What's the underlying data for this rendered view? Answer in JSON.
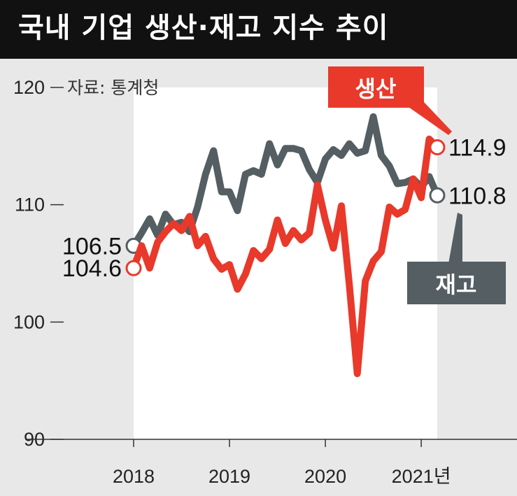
{
  "title": "국내 기업 생산·재고 지수 추이",
  "source": "자료: 통계청",
  "chart_data": {
    "type": "line",
    "ylim": [
      90,
      120
    ],
    "yticks": [
      90,
      100,
      110,
      120
    ],
    "xticks": [
      "2018",
      "2019",
      "2020",
      "2021년"
    ],
    "x_range": [
      2018.0,
      2021.167
    ],
    "grid": false,
    "legend": "inline",
    "series": [
      {
        "name": "재고",
        "color": "#545e63",
        "start_value": "106.5",
        "end_value": "110.8",
        "points": [
          [
            2018.0,
            106.5
          ],
          [
            2018.083,
            107.6
          ],
          [
            2018.167,
            108.8
          ],
          [
            2018.25,
            107.4
          ],
          [
            2018.333,
            109.2
          ],
          [
            2018.417,
            108.3
          ],
          [
            2018.5,
            108.5
          ],
          [
            2018.583,
            107.7
          ],
          [
            2018.667,
            109.8
          ],
          [
            2018.75,
            112.6
          ],
          [
            2018.833,
            114.6
          ],
          [
            2018.917,
            111.1
          ],
          [
            2019.0,
            111.1
          ],
          [
            2019.083,
            109.5
          ],
          [
            2019.167,
            112.6
          ],
          [
            2019.25,
            112.9
          ],
          [
            2019.333,
            112.6
          ],
          [
            2019.417,
            115.2
          ],
          [
            2019.5,
            113.4
          ],
          [
            2019.583,
            114.8
          ],
          [
            2019.667,
            114.8
          ],
          [
            2019.75,
            114.6
          ],
          [
            2019.833,
            113.0
          ],
          [
            2019.917,
            111.9
          ],
          [
            2020.0,
            113.9
          ],
          [
            2020.083,
            114.7
          ],
          [
            2020.167,
            114.2
          ],
          [
            2020.25,
            115.2
          ],
          [
            2020.333,
            114.4
          ],
          [
            2020.417,
            114.6
          ],
          [
            2020.5,
            117.5
          ],
          [
            2020.583,
            114.2
          ],
          [
            2020.667,
            113.3
          ],
          [
            2020.75,
            111.8
          ],
          [
            2020.833,
            111.9
          ],
          [
            2020.917,
            112.2
          ],
          [
            2021.0,
            111.5
          ],
          [
            2021.083,
            112.4
          ],
          [
            2021.167,
            110.8
          ]
        ]
      },
      {
        "name": "생산",
        "color": "#e8392b",
        "start_value": "104.6",
        "end_value": "114.9",
        "points": [
          [
            2018.0,
            104.6
          ],
          [
            2018.083,
            106.5
          ],
          [
            2018.167,
            104.6
          ],
          [
            2018.25,
            106.8
          ],
          [
            2018.333,
            107.7
          ],
          [
            2018.417,
            108.4
          ],
          [
            2018.5,
            107.8
          ],
          [
            2018.583,
            109.0
          ],
          [
            2018.667,
            106.5
          ],
          [
            2018.75,
            107.3
          ],
          [
            2018.833,
            105.4
          ],
          [
            2018.917,
            104.5
          ],
          [
            2019.0,
            104.9
          ],
          [
            2019.083,
            102.8
          ],
          [
            2019.167,
            104.1
          ],
          [
            2019.25,
            106.1
          ],
          [
            2019.333,
            105.4
          ],
          [
            2019.417,
            106.2
          ],
          [
            2019.5,
            108.7
          ],
          [
            2019.583,
            106.7
          ],
          [
            2019.667,
            107.8
          ],
          [
            2019.75,
            107.0
          ],
          [
            2019.833,
            107.6
          ],
          [
            2019.917,
            111.7
          ],
          [
            2020.0,
            108.7
          ],
          [
            2020.083,
            106.3
          ],
          [
            2020.167,
            109.9
          ],
          [
            2020.25,
            103.2
          ],
          [
            2020.333,
            95.6
          ],
          [
            2020.417,
            103.5
          ],
          [
            2020.5,
            105.2
          ],
          [
            2020.583,
            106.0
          ],
          [
            2020.667,
            109.8
          ],
          [
            2020.75,
            109.2
          ],
          [
            2020.833,
            109.6
          ],
          [
            2020.917,
            112.2
          ],
          [
            2021.0,
            110.6
          ],
          [
            2021.083,
            115.6
          ],
          [
            2021.167,
            114.9
          ]
        ]
      }
    ]
  },
  "legend": {
    "production": "생산",
    "inventory": "재고"
  },
  "colors": {
    "background": "#e8e8e9",
    "plot_area": "#ffffff",
    "title_bar": "#111111",
    "production": "#e8392b",
    "inventory": "#545e63"
  }
}
